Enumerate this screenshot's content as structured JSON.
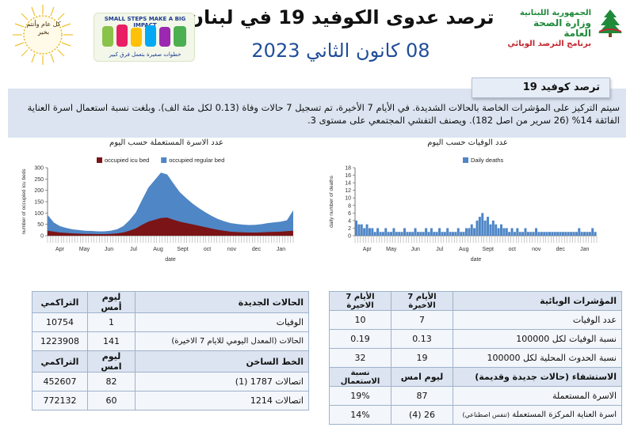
{
  "header": {
    "title": "ترصد عدوى الكوفيد 19 في لبنان",
    "date": "08 كانون الثاني 2023",
    "ministry": {
      "republic": "الجمهورية اللبنانية",
      "ministry": "وزارة الصحة العامة",
      "program": "برنامج الترصد الوبائي"
    },
    "seal_text": "كل عام وأنتم بخير",
    "banner": {
      "top": "SMALL STEPS MAKE A BIG IMPACT",
      "bottom": "خطوات صغيرة بتعمل فرق كبير"
    },
    "colors": {
      "title": "#111111",
      "date": "#1f4e9a",
      "ministry_green": "#1f8a3a",
      "ministry_red": "#c4262e"
    }
  },
  "summary": {
    "tab_label": "ترصد كوفيد 19",
    "line1": "سيتم التركيز على المؤشرات الخاصة بالحالات الشديدة. في الأيام 7 الأخيرة، تم تسجيل  7  حالات وفاة  (0.13 لكل مئة الف). وبلغت نسبة استعمال اسرة العناية",
    "line2": "الفائقة 14%  (26 سرير من اصل 182). ويصنف التفشي المجتمعي على مستوى 3."
  },
  "charts": [
    {
      "chart_data": {
        "type": "area",
        "title": "عدد الاسرة المستعملة حسب اليوم",
        "xlabel": "date",
        "ylabel": "number of occupied icu beds",
        "x_ticks": [
          "Apr",
          "May",
          "Jun",
          "Jul",
          "Aug",
          "Sept",
          "oct",
          "nov",
          "dec",
          "Jan"
        ],
        "ylim": [
          0,
          300
        ],
        "y_ticks": [
          0,
          50,
          100,
          150,
          200,
          250,
          300
        ],
        "legend": "top",
        "series": [
          {
            "name": "occupied icu bed",
            "color": "#7b1416",
            "values": [
              22,
              18,
              14,
              12,
              10,
              9,
              8,
              8,
              7,
              7,
              8,
              10,
              14,
              22,
              32,
              48,
              62,
              70,
              78,
              80,
              70,
              62,
              56,
              50,
              44,
              38,
              32,
              26,
              22,
              18,
              16,
              15,
              14,
              14,
              15,
              16,
              17,
              18,
              20,
              22
            ]
          },
          {
            "name": "occupied regular bed",
            "color": "#4f86c6",
            "values": [
              70,
              40,
              28,
              22,
              18,
              16,
              14,
              13,
              12,
              12,
              14,
              18,
              28,
              46,
              70,
              110,
              150,
              175,
              200,
              190,
              160,
              130,
              110,
              92,
              78,
              66,
              56,
              48,
              42,
              38,
              36,
              34,
              33,
              34,
              36,
              40,
              42,
              44,
              48,
              90
            ]
          }
        ]
      }
    },
    {
      "chart_data": {
        "type": "bar",
        "title": "عدد الوفيات حسب اليوم",
        "xlabel": "date",
        "ylabel": "daily number of deaths",
        "x_ticks": [
          "Apr",
          "May",
          "Jun",
          "Jul",
          "Aug",
          "Sept",
          "oct",
          "nov",
          "dec",
          "Jan"
        ],
        "ylim": [
          0,
          18
        ],
        "y_ticks": [
          0,
          2,
          4,
          6,
          8,
          10,
          12,
          14,
          16,
          18
        ],
        "legend": "top",
        "series": [
          {
            "name": "Daily deaths",
            "color": "#4f86c6",
            "values": [
              4,
              3,
              3,
              2,
              3,
              2,
              2,
              1,
              2,
              1,
              1,
              2,
              1,
              1,
              2,
              1,
              1,
              1,
              2,
              1,
              1,
              1,
              2,
              1,
              1,
              1,
              2,
              1,
              2,
              1,
              1,
              2,
              1,
              1,
              2,
              1,
              1,
              1,
              2,
              1,
              1,
              2,
              2,
              3,
              2,
              4,
              5,
              6,
              4,
              5,
              3,
              4,
              3,
              2,
              3,
              2,
              2,
              1,
              2,
              1,
              2,
              1,
              1,
              2,
              1,
              1,
              1,
              2,
              1,
              1,
              1,
              1,
              1,
              1,
              1,
              1,
              1,
              1,
              1,
              1,
              1,
              1,
              1,
              2,
              1,
              1,
              1,
              1,
              2,
              1
            ]
          }
        ]
      }
    }
  ],
  "table_left": {
    "header1": {
      "label": "الحالات الجديدة",
      "yesterday": "ليوم أمس",
      "cumulative": "التراكمي"
    },
    "rows1": [
      {
        "label": "الوفيات",
        "yesterday": "1",
        "cumulative": "10754"
      },
      {
        "label": "الحالات (المعدل اليومي للايام 7 الاخيرة)",
        "yesterday": "141",
        "cumulative": "1223908"
      }
    ],
    "header2": {
      "label": "الخط الساخن",
      "yesterday": "ليوم امس",
      "cumulative": "التراكمي"
    },
    "rows2": [
      {
        "label": "اتصالات 1787 (1)",
        "yesterday": "82",
        "cumulative": "452607"
      },
      {
        "label": "اتصالات 1214",
        "yesterday": "60",
        "cumulative": "772132"
      }
    ]
  },
  "table_right": {
    "header1": {
      "label": "المؤشرات الوبائية",
      "last7": "الأيام 7 الاخيرة",
      "prev7": "الأيام 7 الاخيرة"
    },
    "rows1": [
      {
        "label": "عدد الوفيات",
        "last7": "7",
        "prev7": "10"
      },
      {
        "label": "نسبة الوفيات لكل 100000",
        "last7": "0.13",
        "prev7": "0.19"
      },
      {
        "label": "نسبة الحدوث المحلية لكل 100000",
        "last7": "19",
        "prev7": "32"
      }
    ],
    "header2": {
      "label": "الاستشفاء (حالات جديدة وقديمة)",
      "last7": "ليوم امس",
      "prev7": "نسبة الاستعمال"
    },
    "rows2": [
      {
        "label": "الاسرة المستعملة",
        "last7": "87",
        "prev7": "19%"
      },
      {
        "label": "اسرة العناية المركزة المستعملة",
        "note": "(تنفس اصطناعي)",
        "last7": "(4) 26",
        "prev7": "14%"
      }
    ]
  }
}
